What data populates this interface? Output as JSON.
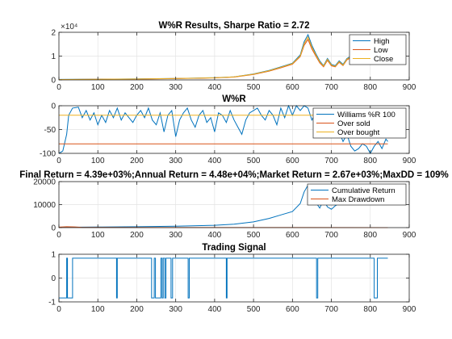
{
  "chart_data": [
    {
      "type": "line",
      "title": "W%R Results, Sharpe Ratio = 2.72",
      "xlim": [
        0,
        900
      ],
      "ylim": [
        0,
        20000
      ],
      "xticks": [
        "0",
        "100",
        "200",
        "300",
        "400",
        "500",
        "600",
        "700",
        "800",
        "900"
      ],
      "yticks": [
        "0",
        "1",
        "2"
      ],
      "y_exponent_label": "×10⁴",
      "grid": true,
      "legend": "top-right",
      "series": [
        {
          "name": "High",
          "color": "#0072bd",
          "x": [
            0,
            100,
            200,
            300,
            400,
            450,
            500,
            540,
            570,
            600,
            620,
            630,
            640,
            650,
            660,
            670,
            680,
            690,
            700,
            710,
            720,
            730,
            740,
            750,
            760
          ],
          "values": [
            200,
            300,
            400,
            600,
            900,
            1300,
            2500,
            4000,
            5500,
            7000,
            10500,
            16000,
            19000,
            14500,
            11000,
            8000,
            6000,
            9000,
            6500,
            6000,
            8000,
            6500,
            9000,
            10000,
            9500
          ]
        },
        {
          "name": "Low",
          "color": "#d95319",
          "x": [
            0,
            100,
            200,
            300,
            400,
            450,
            500,
            540,
            570,
            600,
            620,
            630,
            640,
            650,
            660,
            670,
            680,
            690,
            700,
            710,
            720,
            730,
            740,
            750,
            760
          ],
          "values": [
            150,
            250,
            350,
            550,
            850,
            1200,
            2300,
            3700,
            5100,
            6600,
            9800,
            14500,
            17000,
            13000,
            10000,
            7200,
            5500,
            8200,
            5900,
            5500,
            7400,
            6000,
            8400,
            9400,
            9000
          ]
        },
        {
          "name": "Close",
          "color": "#edb120",
          "x": [
            0,
            100,
            200,
            300,
            400,
            450,
            500,
            540,
            570,
            600,
            620,
            630,
            640,
            650,
            660,
            670,
            680,
            690,
            700,
            710,
            720,
            730,
            740,
            750,
            760
          ],
          "values": [
            180,
            280,
            380,
            580,
            880,
            1250,
            2400,
            3850,
            5300,
            6800,
            10100,
            15200,
            18000,
            13700,
            10500,
            7600,
            5800,
            8600,
            6200,
            5700,
            7700,
            6200,
            8700,
            9700,
            9200
          ]
        }
      ]
    },
    {
      "type": "line",
      "title": "W%R",
      "xlim": [
        0,
        900
      ],
      "ylim": [
        -100,
        0
      ],
      "xticks": [
        "0",
        "100",
        "200",
        "300",
        "400",
        "500",
        "600",
        "700",
        "800",
        "900"
      ],
      "yticks": [
        "-100",
        "-50",
        "0"
      ],
      "grid": true,
      "legend": "top-right",
      "series": [
        {
          "name": "Williams %R 100",
          "color": "#0072bd",
          "x": [
            0,
            10,
            20,
            25,
            35,
            50,
            60,
            70,
            80,
            90,
            100,
            110,
            120,
            130,
            140,
            150,
            160,
            170,
            180,
            190,
            200,
            210,
            220,
            230,
            240,
            250,
            260,
            270,
            280,
            290,
            300,
            310,
            320,
            330,
            340,
            350,
            360,
            370,
            380,
            390,
            400,
            410,
            420,
            430,
            440,
            450,
            460,
            470,
            480,
            490,
            500,
            510,
            520,
            530,
            540,
            550,
            560,
            570,
            580,
            590,
            600,
            610,
            620,
            630,
            640,
            650,
            660,
            670,
            680,
            690,
            700,
            710,
            720,
            730,
            740,
            750,
            760,
            770,
            780,
            790,
            800,
            810,
            820,
            830,
            840,
            845
          ],
          "values": [
            -100,
            -95,
            -60,
            -20,
            -5,
            -3,
            -25,
            -10,
            -30,
            -15,
            -40,
            -20,
            -35,
            -10,
            -25,
            -5,
            -30,
            -15,
            -25,
            -35,
            -20,
            -10,
            -25,
            -5,
            -30,
            -40,
            -15,
            -55,
            -20,
            -10,
            -65,
            -30,
            -15,
            -5,
            -30,
            -45,
            -20,
            -10,
            -35,
            -25,
            -55,
            -15,
            -20,
            -35,
            -10,
            -30,
            -45,
            -60,
            -30,
            -15,
            -10,
            -5,
            -20,
            -30,
            -10,
            -20,
            -40,
            -5,
            -25,
            0,
            -20,
            0,
            -10,
            0,
            -5,
            -30,
            -15,
            -45,
            -20,
            -60,
            -40,
            -25,
            -55,
            -75,
            -60,
            -85,
            -95,
            -90,
            -80,
            -85,
            -100,
            -85,
            -75,
            -90,
            -70,
            -75
          ]
        },
        {
          "name": "Over sold",
          "color": "#d95319",
          "x": [
            0,
            845
          ],
          "values": [
            -80,
            -80
          ]
        },
        {
          "name": "Over bought",
          "color": "#edb120",
          "x": [
            0,
            845
          ],
          "values": [
            -20,
            -20
          ]
        }
      ]
    },
    {
      "type": "line",
      "title": "Final Return = 4.39e+03%;Annual Return = 4.48e+04%;Market Return = 2.67e+03%;MaxDD = 109%",
      "xlim": [
        0,
        900
      ],
      "ylim": [
        0,
        20000
      ],
      "xticks": [
        "0",
        "100",
        "200",
        "300",
        "400",
        "500",
        "600",
        "700",
        "800",
        "900"
      ],
      "yticks": [
        "0",
        "10000",
        "20000"
      ],
      "grid": true,
      "legend": "top-right",
      "series": [
        {
          "name": "Cumulative Return",
          "color": "#0072bd",
          "x": [
            0,
            100,
            200,
            300,
            400,
            450,
            500,
            540,
            570,
            600,
            620,
            630,
            640,
            650,
            660,
            670,
            680,
            690,
            700,
            710,
            720,
            730,
            740,
            750,
            760,
            780,
            800,
            820,
            840,
            845
          ],
          "values": [
            150,
            250,
            400,
            600,
            1000,
            1500,
            2500,
            4000,
            5500,
            7000,
            10500,
            15500,
            18500,
            14000,
            11000,
            8500,
            12000,
            9000,
            8000,
            9500,
            10500,
            12000,
            14500,
            13500,
            15000,
            16500,
            17500,
            18500,
            17000,
            17500
          ]
        },
        {
          "name": "Max Drawdown",
          "color": "#d95319",
          "x": [
            0,
            20,
            40,
            60,
            845
          ],
          "values": [
            200,
            400,
            300,
            100,
            0
          ]
        }
      ]
    },
    {
      "type": "line",
      "title": "Trading Signal",
      "xlim": [
        0,
        900
      ],
      "ylim": [
        -1.2,
        1.2
      ],
      "xticks": [
        "0",
        "100",
        "200",
        "300",
        "400",
        "500",
        "600",
        "700",
        "800",
        "900"
      ],
      "yticks": [
        "-1",
        "0",
        "1"
      ],
      "grid": true,
      "series": [
        {
          "name": "",
          "color": "#0072bd",
          "x": [
            0,
            20,
            20,
            22,
            22,
            35,
            35,
            148,
            148,
            150,
            150,
            238,
            238,
            245,
            245,
            248,
            248,
            262,
            262,
            265,
            265,
            268,
            268,
            272,
            272,
            275,
            275,
            288,
            288,
            292,
            292,
            332,
            332,
            335,
            335,
            430,
            430,
            432,
            432,
            662,
            662,
            665,
            665,
            810,
            810,
            818,
            818,
            845
          ],
          "values": [
            -1,
            -1,
            1,
            1,
            -1,
            -1,
            1,
            1,
            -1,
            -1,
            1,
            1,
            -1,
            -1,
            1,
            1,
            -1,
            -1,
            1,
            1,
            -1,
            -1,
            1,
            1,
            -1,
            -1,
            1,
            1,
            -1,
            -1,
            1,
            1,
            -1,
            -1,
            1,
            1,
            -1,
            -1,
            1,
            1,
            -1,
            -1,
            1,
            1,
            -1,
            -1,
            1,
            1
          ]
        }
      ]
    }
  ]
}
